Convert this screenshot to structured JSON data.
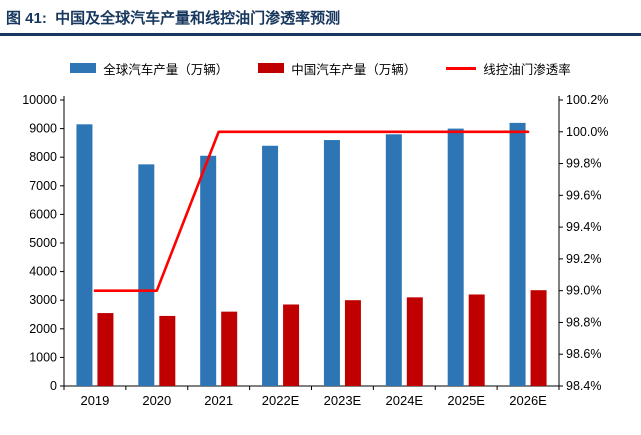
{
  "title": "图 41:  中国及全球汽车产量和线控油门渗透率预测",
  "colors": {
    "title": "#17375E",
    "title_rule": "#17375E",
    "bar_global": "#2E75B6",
    "bar_china": "#C00000",
    "line_penetration": "#FF0000",
    "axis_text": "#000000",
    "axis_line": "#000000"
  },
  "chart_data": {
    "type": "bar",
    "subtype": "bar+line-dual-axis",
    "title": "中国及全球汽车产量和线控油门渗透率预测",
    "categories": [
      "2019",
      "2020",
      "2021",
      "2022E",
      "2023E",
      "2024E",
      "2025E",
      "2026E"
    ],
    "series": [
      {
        "name": "全球汽车产量（万辆）",
        "type": "bar",
        "axis": "left",
        "color": "#2E75B6",
        "values": [
          9150,
          7750,
          8050,
          8400,
          8600,
          8800,
          9000,
          9200
        ]
      },
      {
        "name": "中国汽车产量（万辆）",
        "type": "bar",
        "axis": "left",
        "color": "#C00000",
        "values": [
          2550,
          2450,
          2600,
          2850,
          3000,
          3100,
          3200,
          3350
        ]
      },
      {
        "name": "线控油门渗透率",
        "type": "line",
        "axis": "right",
        "color": "#FF0000",
        "values": [
          99.0,
          99.0,
          100.0,
          100.0,
          100.0,
          100.0,
          100.0,
          100.0
        ]
      }
    ],
    "left_axis": {
      "min": 0,
      "max": 10000,
      "step": 1000
    },
    "right_axis": {
      "min": 98.4,
      "max": 100.2,
      "step": 0.2,
      "format": "percent-1-decimal"
    },
    "legend_position": "top",
    "grid": false
  }
}
